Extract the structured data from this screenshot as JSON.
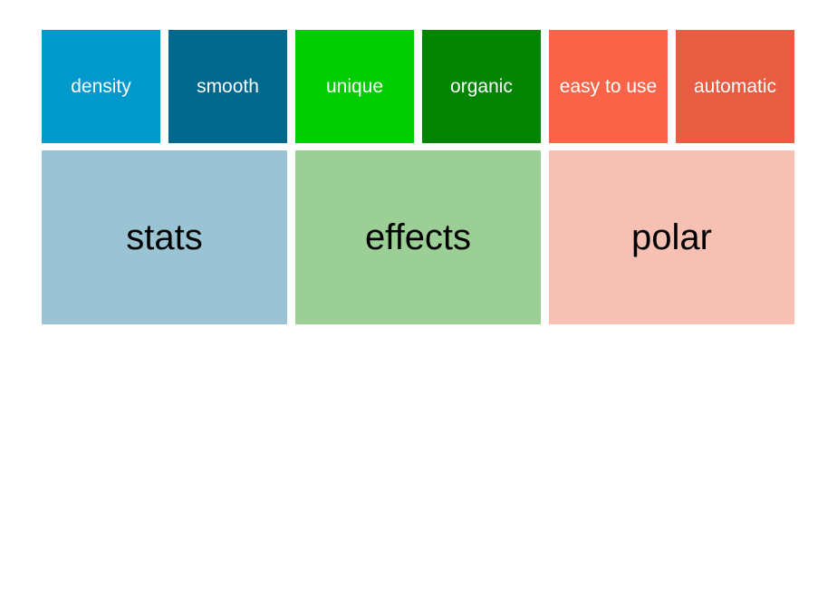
{
  "chart_data": {
    "type": "treemap",
    "title": "",
    "legend_position": "none",
    "background": "#ffffff",
    "groups": [
      {
        "label": "stats",
        "color": "#9ac4d3",
        "label_color": "#000000",
        "children": [
          {
            "label": "density",
            "color": "#0099cb",
            "label_color": "#ffffff"
          },
          {
            "label": "smooth",
            "color": "#00688c",
            "label_color": "#ffffff"
          }
        ]
      },
      {
        "label": "effects",
        "color": "#9ccf96",
        "label_color": "#000000",
        "children": [
          {
            "label": "unique",
            "color": "#00cc00",
            "label_color": "#ffffff"
          },
          {
            "label": "organic",
            "color": "#038403",
            "label_color": "#ffffff"
          }
        ]
      },
      {
        "label": "polar",
        "color": "#f6c0b3",
        "label_color": "#000000",
        "children": [
          {
            "label": "easy to use",
            "color": "#fa6448",
            "label_color": "#ffffff"
          },
          {
            "label": "automatic",
            "color": "#e85c42",
            "label_color": "#ffffff"
          }
        ]
      }
    ]
  }
}
